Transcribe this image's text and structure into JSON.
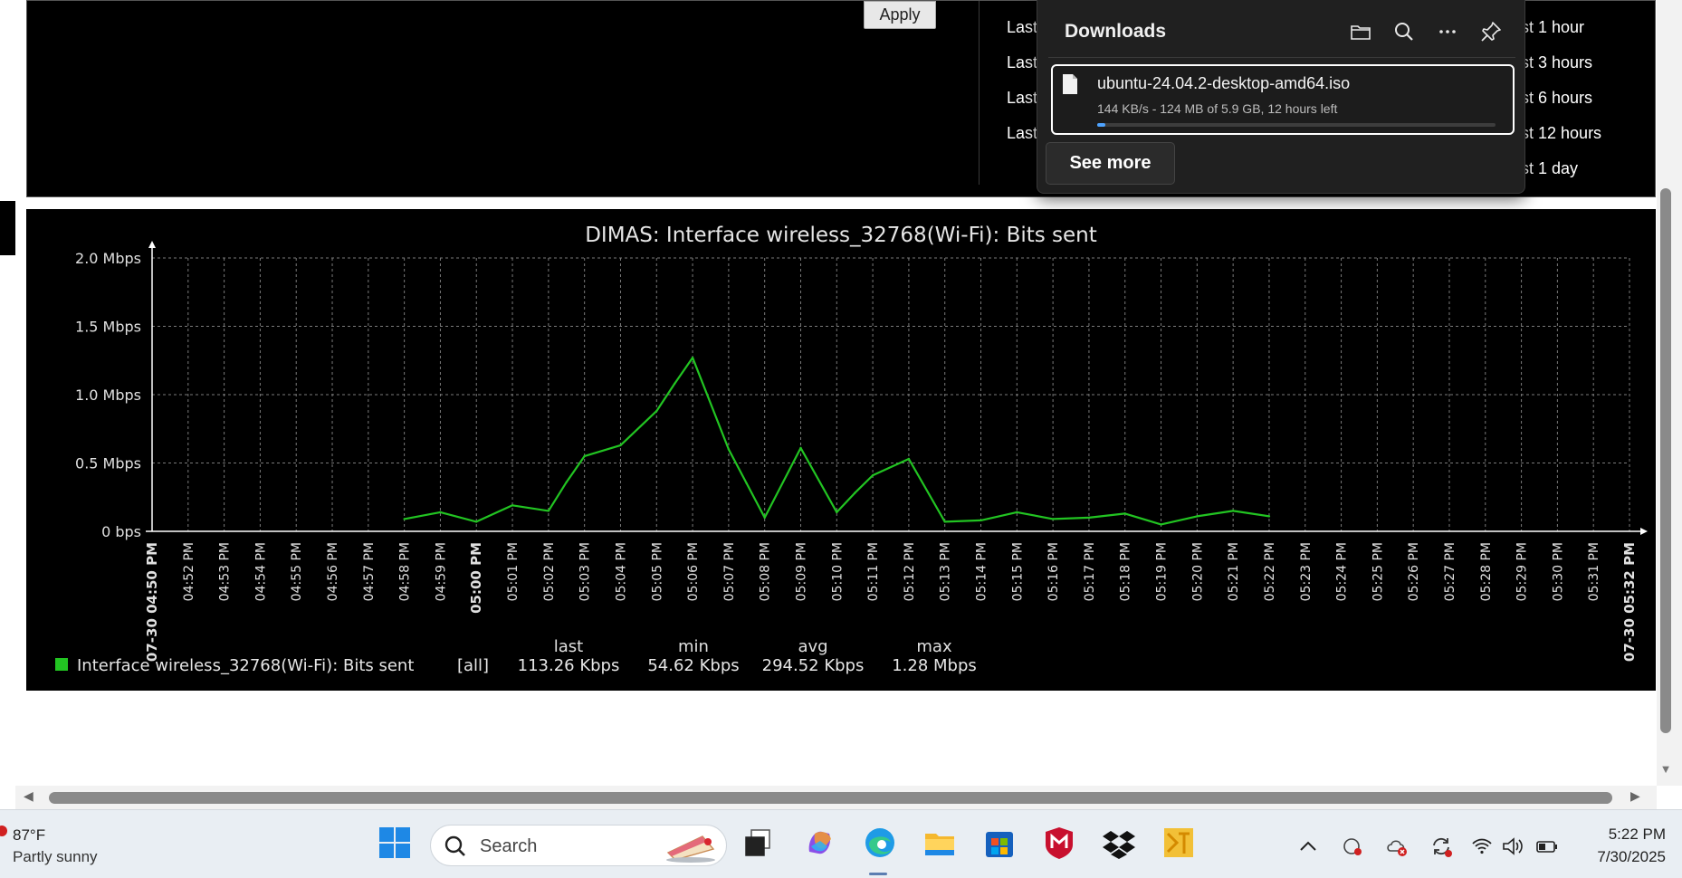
{
  "top_panel": {
    "apply_label": "Apply",
    "left_periods": [
      "Last",
      "Last",
      "Last",
      "Last"
    ],
    "right_periods": [
      "ast 1 hour",
      "ast 3 hours",
      "ast 6 hours",
      "ast 12 hours",
      "ast 1 day"
    ]
  },
  "downloads": {
    "title": "Downloads",
    "toolbar_icons": [
      "folder-icon",
      "search-icon",
      "more-icon",
      "pin-icon"
    ],
    "item": {
      "filename": "ubuntu-24.04.2-desktop-amd64.iso",
      "status": "144 KB/s - 124 MB of 5.9 GB, 12 hours left",
      "progress_fraction": 0.021
    },
    "see_more_label": "See more"
  },
  "chart_data": {
    "type": "line",
    "title": "DIMAS: Interface wireless_32768(Wi-Fi): Bits sent",
    "y_ticks": [
      "2.0 Mbps",
      "1.5 Mbps",
      "1.0 Mbps",
      "0.5 Mbps",
      "0 bps"
    ],
    "ylim_mbps": [
      0,
      2.0
    ],
    "x_ticks": [
      "07-30 04:50 PM",
      "04:52 PM",
      "04:53 PM",
      "04:54 PM",
      "04:55 PM",
      "04:56 PM",
      "04:57 PM",
      "04:58 PM",
      "04:59 PM",
      "05:00 PM",
      "05:01 PM",
      "05:02 PM",
      "05:03 PM",
      "05:04 PM",
      "05:05 PM",
      "05:06 PM",
      "05:07 PM",
      "05:08 PM",
      "05:09 PM",
      "05:10 PM",
      "05:11 PM",
      "05:12 PM",
      "05:13 PM",
      "05:14 PM",
      "05:15 PM",
      "05:16 PM",
      "05:17 PM",
      "05:18 PM",
      "05:19 PM",
      "05:20 PM",
      "05:21 PM",
      "05:22 PM",
      "05:23 PM",
      "05:24 PM",
      "05:25 PM",
      "05:26 PM",
      "05:27 PM",
      "05:28 PM",
      "05:29 PM",
      "05:30 PM",
      "05:31 PM",
      "07-30 05:32 PM"
    ],
    "bold_tick_indices": [
      0,
      9,
      41
    ],
    "grid": true,
    "series": [
      {
        "name": "Interface wireless_32768(Wi-Fi): Bits sent",
        "color": "#22c422",
        "x_minutes": [
          8,
          9,
          10,
          11,
          12,
          12.5,
          13,
          14,
          15,
          15.5,
          16,
          17,
          17.5,
          18,
          19,
          20,
          20.5,
          21,
          22,
          23,
          24,
          25,
          26,
          27,
          28,
          29,
          30,
          31,
          32
        ],
        "values_mbps": [
          0.09,
          0.14,
          0.07,
          0.19,
          0.15,
          0.36,
          0.55,
          0.63,
          0.88,
          1.08,
          1.27,
          0.6,
          0.35,
          0.1,
          0.61,
          0.14,
          0.28,
          0.41,
          0.53,
          0.07,
          0.08,
          0.14,
          0.09,
          0.1,
          0.13,
          0.05,
          0.11,
          0.15,
          0.11
        ]
      }
    ],
    "legend": {
      "headers": [
        "last",
        "min",
        "avg",
        "max"
      ],
      "label": "Interface wireless_32768(Wi-Fi): Bits sent",
      "scope": "[all]",
      "last": "113.26 Kbps",
      "min": "54.62 Kbps",
      "avg": "294.52 Kbps",
      "max": "1.28 Mbps"
    }
  },
  "taskbar": {
    "weather_temp": "87°F",
    "weather_desc": "Partly sunny",
    "search_placeholder": "Search",
    "apps": [
      "start-icon",
      "task-view-icon",
      "copilot-icon",
      "edge-icon",
      "file-explorer-icon",
      "store-icon",
      "mcafee-icon",
      "dropbox-icon",
      "app-icon"
    ],
    "tray": [
      "chevron-up-icon",
      "network-sync-icon",
      "cloud-error-icon",
      "sync-icon",
      "wifi-icon",
      "volume-icon",
      "battery-icon"
    ],
    "time": "5:22 PM",
    "date": "7/30/2025"
  }
}
